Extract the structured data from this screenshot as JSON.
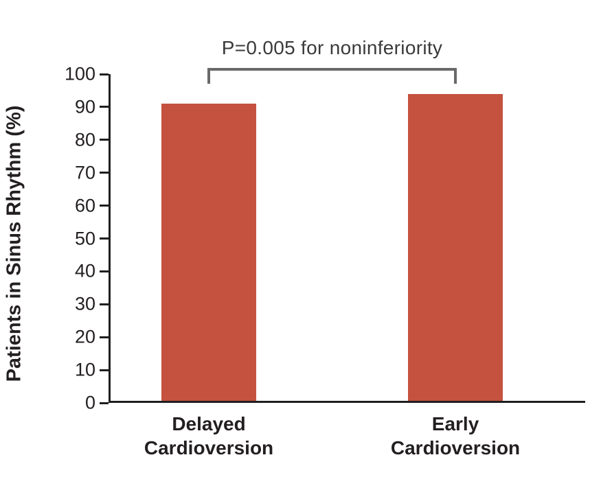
{
  "chart_data": {
    "type": "bar",
    "categories": [
      "Delayed Cardioversion",
      "Early Cardioversion"
    ],
    "values": [
      91,
      94
    ],
    "title": "",
    "xlabel": "",
    "ylabel": "Patients in Sinus Rhythm (%)",
    "ylim": [
      0,
      100
    ],
    "yticks": [
      0,
      10,
      20,
      30,
      40,
      50,
      60,
      70,
      80,
      90,
      100
    ],
    "grid": false,
    "legend": null,
    "annotation": {
      "text": "P=0.005 for noninferiority",
      "connects": [
        "Delayed Cardioversion",
        "Early Cardioversion"
      ]
    },
    "colors": {
      "bar": "#C5523E",
      "bracket": "#69696B",
      "axis": "#1F1F1F",
      "text": "#231F20",
      "annotation_text": "#3A3A3C"
    }
  }
}
